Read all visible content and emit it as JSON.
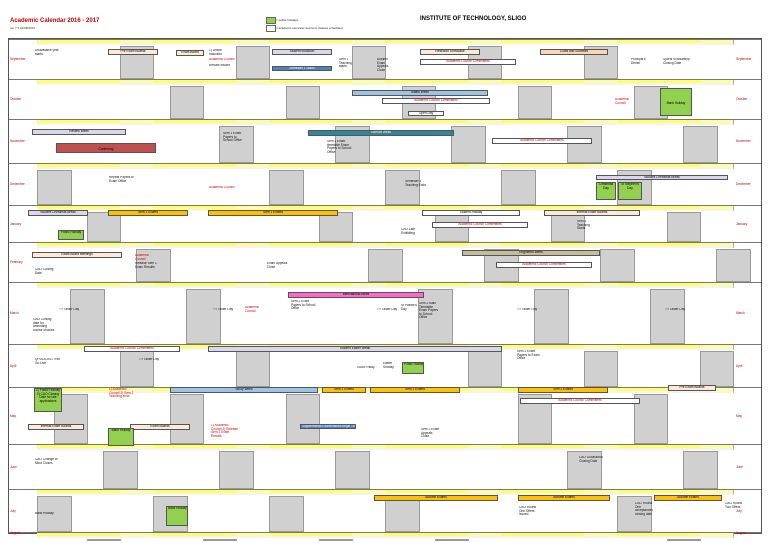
{
  "header": {
    "title": "Academic Calendar 2016 - 2017",
    "subtitle": "ver 7.3 24/08/2016",
    "institute": "INSTITUTE OF TECHNOLOGY, SLIGO",
    "legend": [
      {
        "color": "#92d050",
        "label": "= public holidays"
      },
      {
        "color": "#ffffff",
        "label": "= academic semester and term classes scheduled"
      }
    ]
  },
  "colors": {
    "weekday": "#ffffff",
    "weekend": "#d0d0d0",
    "header": "#ffff66",
    "holiday": "#92d050",
    "exam": "#ffc000",
    "committee": "#ffffff",
    "week": "#dad7ec",
    "blue": "#4f81bd",
    "teal": "#31859c",
    "pink": "#ff66cc",
    "conferring": "#c0504d",
    "sky": "#9dc3e6",
    "peach": "#fde9d9"
  },
  "months": [
    "September",
    "October",
    "November",
    "December",
    "January",
    "February",
    "March",
    "April",
    "May",
    "June",
    "July",
    "August"
  ],
  "events": {
    "pre_exam_boards": "Pre Exam Boards",
    "exam_board": "Exam Board",
    "student_induction": "Student Induction",
    "semester_starts": "Semester 1 Starts",
    "research_showcase": "Research Showcase",
    "clubs_societies": "Clubs and Societies",
    "sep_induction": "1) Online Induction",
    "sep_council": "Academic Council",
    "sep_results": "Results Issued",
    "sep_teach": "Sem 1 Teaching starts",
    "sep_autumn": "Autumn Exam Appeals Close",
    "sep_prov": "Unavailable year starts",
    "sep_principal": "Principal's Dinner",
    "sep_sports": "Sports Scholarship Closing Date",
    "acc": "Academic Council Committees",
    "maths_week": "Maths Week",
    "open_day": "Open Day",
    "oct_council": "Academic Council",
    "bank_holiday": "Bank Holiday",
    "review_week": "Review Week",
    "science_week": "Science Week",
    "conferring": "Conferring",
    "nov_papers": "Sem 1 Exam Papers to School Office",
    "nov_timetable": "Sem 1 Exam timetable Exam Papers to School Office",
    "student_christmas": "Student Christmas Break",
    "dec_repeat": "Repeat Papers to Exam Office",
    "dec_council": "Academic Council",
    "dec_sem1": "Semester 1 Teaching Ends",
    "st_stephens": "St Stephen's Day",
    "public_holiday": "Public Holiday",
    "christmas_day": "Christmas Day",
    "jan_student_xmas": "Student Christmas Break",
    "sem1_exams": "Sem 1 Exams",
    "student_holiday": "Student Holiday",
    "internal_boards": "Internal Exam Boards",
    "jan_sem2": "Sem 2 Teaching Starts",
    "jan_cao": "CAO Late Exhibiting",
    "feb_boards": "Exam Board Meetings",
    "feb_council": "Academic Council",
    "feb_results": "Release Sem 1 Exam Results",
    "feb_appeals": "Exam Appeals Close",
    "feb_cao": "CAO Closing Date",
    "engineers_week": "Engineers Week",
    "int_week": "International Week",
    "mar_tv": "TY Taster Day",
    "mar_council": "Academic Council",
    "mar_papers": "Sem 2 Exam Papers to School Office",
    "mar_patrick": "St Patrick's Day",
    "mar_sem2": "Sem 2 Main Timetable Exam Papers to School Office",
    "mar_cao": "CAO Closing date for amending course choices",
    "student_easter": "Student Easter Break",
    "apr_open": "QPDLA 2017 Exit Go Live",
    "apr_easter_sun": "Easter Sunday",
    "apr_good_friday": "Good Friday",
    "apr_easter_mon": "Public Holiday",
    "apr_papers": "Sem 2 Exam Papers to Exam Office",
    "study_week": "Study Week",
    "sem2_exams": "Sem 2 Exams",
    "may_cao": "1) Public Holiday 2) CAO Closing Date for late applications",
    "may_council": "1) Academic Council 2) Sem 2 Teaching ends",
    "may_pre": "Pre Exam Boards",
    "jun_boards": "Exam Boards",
    "jun_council": "1) Academic Council 2) Release Sem 2 Exam Results",
    "jun_supp": "Supplemental Examinations begin TBC",
    "jun_appeal": "Sem 2 Exam Appeals Close",
    "jun_internal": "Internal Exam Boards",
    "jul_cao": "CAO Change of Mind Closes",
    "jul_closing": "CAO Occasional Closing Date",
    "autumn_exams": "Autumn Exams",
    "aug_bank": "Bank Holiday",
    "aug_cao_offers": "CAO Round One Offers Issued",
    "aug_cao2": "CAO Round Two Offers",
    "aug_cao3": "CAO Round One acceptances closing date"
  }
}
